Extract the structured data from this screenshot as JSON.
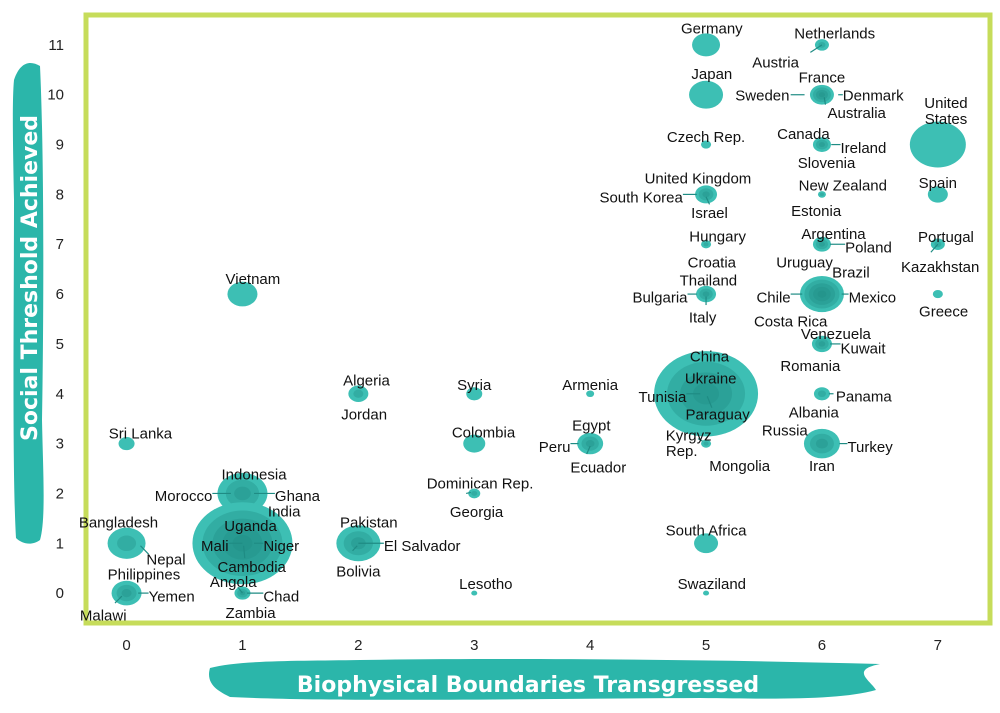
{
  "chart_data": {
    "type": "scatter",
    "xlabel": "Biophysical Boundaries Transgressed",
    "ylabel": "Social Threshold Achieved",
    "xlim": [
      -0.35,
      7.45
    ],
    "ylim": [
      -0.6,
      11.6
    ],
    "xticks": [
      0,
      1,
      2,
      3,
      4,
      5,
      6,
      7
    ],
    "yticks": [
      0,
      1,
      2,
      3,
      4,
      5,
      6,
      7,
      8,
      9,
      10,
      11
    ],
    "grid": false,
    "colors": {
      "bubble": "#3dbfb4",
      "bubble_dark": "#1f8c84",
      "frame": "#c6dc5a",
      "axis_banner": "#2bb6aa"
    },
    "bubbles": [
      {
        "x": 5,
        "y": 11,
        "r": 14,
        "k": 1
      },
      {
        "x": 6,
        "y": 11,
        "r": 7,
        "k": 2
      },
      {
        "x": 5,
        "y": 10,
        "r": 17,
        "k": 1
      },
      {
        "x": 6,
        "y": 10,
        "r": 12,
        "k": 4
      },
      {
        "x": 5,
        "y": 9,
        "r": 5,
        "k": 1
      },
      {
        "x": 6,
        "y": 9,
        "r": 9,
        "k": 3
      },
      {
        "x": 7,
        "y": 9,
        "r": 28,
        "k": 1
      },
      {
        "x": 5,
        "y": 8,
        "r": 11,
        "k": 3
      },
      {
        "x": 6,
        "y": 8,
        "r": 4,
        "k": 2
      },
      {
        "x": 7,
        "y": 8,
        "r": 10,
        "k": 1
      },
      {
        "x": 5,
        "y": 7,
        "r": 5,
        "k": 2
      },
      {
        "x": 6,
        "y": 7,
        "r": 9,
        "k": 3
      },
      {
        "x": 7,
        "y": 7,
        "r": 7,
        "k": 2
      },
      {
        "x": 1,
        "y": 6,
        "r": 15,
        "k": 1
      },
      {
        "x": 5,
        "y": 6,
        "r": 10,
        "k": 3
      },
      {
        "x": 6,
        "y": 6,
        "r": 22,
        "k": 5
      },
      {
        "x": 7,
        "y": 6,
        "r": 5,
        "k": 1
      },
      {
        "x": 6,
        "y": 5,
        "r": 10,
        "k": 3
      },
      {
        "x": 2,
        "y": 4,
        "r": 10,
        "k": 2
      },
      {
        "x": 3,
        "y": 4,
        "r": 8,
        "k": 1
      },
      {
        "x": 4,
        "y": 4,
        "r": 4,
        "k": 1
      },
      {
        "x": 5,
        "y": 4,
        "r": 52,
        "k": 4
      },
      {
        "x": 6,
        "y": 4,
        "r": 8,
        "k": 2
      },
      {
        "x": 0,
        "y": 3,
        "r": 8,
        "k": 1
      },
      {
        "x": 3,
        "y": 3,
        "r": 11,
        "k": 1
      },
      {
        "x": 4,
        "y": 3,
        "r": 13,
        "k": 3
      },
      {
        "x": 5,
        "y": 3,
        "r": 5,
        "k": 2
      },
      {
        "x": 6,
        "y": 3,
        "r": 18,
        "k": 3
      },
      {
        "x": 1,
        "y": 2,
        "r": 25,
        "k": 3
      },
      {
        "x": 3,
        "y": 2,
        "r": 6,
        "k": 2
      },
      {
        "x": 0,
        "y": 1,
        "r": 19,
        "k": 2
      },
      {
        "x": 1,
        "y": 1,
        "r": 50,
        "k": 5
      },
      {
        "x": 2,
        "y": 1,
        "r": 22,
        "k": 3
      },
      {
        "x": 5,
        "y": 1,
        "r": 12,
        "k": 1
      },
      {
        "x": 0,
        "y": 0,
        "r": 15,
        "k": 3
      },
      {
        "x": 1,
        "y": 0,
        "r": 8,
        "k": 3
      },
      {
        "x": 3,
        "y": 0,
        "r": 3,
        "k": 1
      },
      {
        "x": 5,
        "y": 0,
        "r": 3,
        "k": 1
      }
    ],
    "labels": [
      {
        "t": "Germany",
        "x": 5.05,
        "y": 11.33,
        "a": "middle"
      },
      {
        "t": "Netherlands",
        "x": 6.11,
        "y": 11.23,
        "a": "middle"
      },
      {
        "t": "Austria",
        "x": 5.6,
        "y": 10.65,
        "a": "middle"
      },
      {
        "t": "France",
        "x": 6.0,
        "y": 10.35,
        "a": "middle"
      },
      {
        "t": "Japan",
        "x": 5.05,
        "y": 10.42,
        "a": "middle"
      },
      {
        "t": "Sweden",
        "x": 5.72,
        "y": 9.98,
        "a": "end"
      },
      {
        "t": "Denmark",
        "x": 6.18,
        "y": 9.98,
        "a": "start"
      },
      {
        "t": "Australia",
        "x": 6.3,
        "y": 9.63,
        "a": "middle"
      },
      {
        "t": "United",
        "x": 7.07,
        "y": 9.83,
        "a": "middle"
      },
      {
        "t": "States",
        "x": 7.07,
        "y": 9.51,
        "a": "middle"
      },
      {
        "t": "Czech Rep.",
        "x": 5.0,
        "y": 9.15,
        "a": "middle"
      },
      {
        "t": "Canada",
        "x": 5.84,
        "y": 9.21,
        "a": "middle"
      },
      {
        "t": "Ireland",
        "x": 6.16,
        "y": 8.93,
        "a": "start"
      },
      {
        "t": "Slovenia",
        "x": 6.04,
        "y": 8.63,
        "a": "middle"
      },
      {
        "t": "United Kingdom",
        "x": 4.93,
        "y": 8.32,
        "a": "middle"
      },
      {
        "t": "New Zealand",
        "x": 6.18,
        "y": 8.18,
        "a": "middle"
      },
      {
        "t": "Spain",
        "x": 7.0,
        "y": 8.23,
        "a": "middle"
      },
      {
        "t": "South Korea",
        "x": 4.8,
        "y": 7.94,
        "a": "end"
      },
      {
        "t": "Israel",
        "x": 5.03,
        "y": 7.63,
        "a": "middle"
      },
      {
        "t": "Estonia",
        "x": 5.95,
        "y": 7.67,
        "a": "middle"
      },
      {
        "t": "Hungary",
        "x": 5.1,
        "y": 7.16,
        "a": "middle"
      },
      {
        "t": "Argentina",
        "x": 6.1,
        "y": 7.21,
        "a": "middle"
      },
      {
        "t": "Portugal",
        "x": 7.07,
        "y": 7.15,
        "a": "middle"
      },
      {
        "t": "Poland",
        "x": 6.2,
        "y": 6.93,
        "a": "start"
      },
      {
        "t": "Croatia",
        "x": 5.05,
        "y": 6.63,
        "a": "middle"
      },
      {
        "t": "Uruguay",
        "x": 5.85,
        "y": 6.63,
        "a": "middle"
      },
      {
        "t": "Kazakhstan",
        "x": 7.02,
        "y": 6.54,
        "a": "middle"
      },
      {
        "t": "Brazil",
        "x": 6.25,
        "y": 6.43,
        "a": "middle"
      },
      {
        "t": "Vietnam",
        "x": 1.09,
        "y": 6.3,
        "a": "middle"
      },
      {
        "t": "Thailand",
        "x": 5.02,
        "y": 6.27,
        "a": "middle"
      },
      {
        "t": "Bulgaria",
        "x": 4.84,
        "y": 5.93,
        "a": "end"
      },
      {
        "t": "Chile",
        "x": 5.73,
        "y": 5.93,
        "a": "end"
      },
      {
        "t": "Mexico",
        "x": 6.23,
        "y": 5.93,
        "a": "start"
      },
      {
        "t": "Italy",
        "x": 4.97,
        "y": 5.53,
        "a": "middle"
      },
      {
        "t": "Costa Rica",
        "x": 5.73,
        "y": 5.45,
        "a": "middle"
      },
      {
        "t": "Greece",
        "x": 7.05,
        "y": 5.65,
        "a": "middle"
      },
      {
        "t": "Venezuela",
        "x": 6.12,
        "y": 5.2,
        "a": "middle"
      },
      {
        "t": "Kuwait",
        "x": 6.16,
        "y": 4.91,
        "a": "start"
      },
      {
        "t": "China",
        "x": 5.03,
        "y": 4.75,
        "a": "middle"
      },
      {
        "t": "Romania",
        "x": 5.9,
        "y": 4.56,
        "a": "middle"
      },
      {
        "t": "Ukraine",
        "x": 5.04,
        "y": 4.31,
        "a": "middle"
      },
      {
        "t": "Algeria",
        "x": 2.07,
        "y": 4.27,
        "a": "middle"
      },
      {
        "t": "Syria",
        "x": 3.0,
        "y": 4.18,
        "a": "middle"
      },
      {
        "t": "Armenia",
        "x": 4.0,
        "y": 4.18,
        "a": "middle"
      },
      {
        "t": "Tunisia",
        "x": 4.83,
        "y": 3.93,
        "a": "end"
      },
      {
        "t": "Panama",
        "x": 6.12,
        "y": 3.94,
        "a": "start"
      },
      {
        "t": "Paraguay",
        "x": 5.1,
        "y": 3.58,
        "a": "middle"
      },
      {
        "t": "Albania",
        "x": 5.93,
        "y": 3.62,
        "a": "middle"
      },
      {
        "t": "Jordan",
        "x": 2.05,
        "y": 3.58,
        "a": "middle"
      },
      {
        "t": "Egypt",
        "x": 4.01,
        "y": 3.36,
        "a": "middle"
      },
      {
        "t": "Kyrgyz",
        "x": 4.85,
        "y": 3.16,
        "a": "middle"
      },
      {
        "t": "Russia",
        "x": 5.68,
        "y": 3.26,
        "a": "middle"
      },
      {
        "t": "Sri Lanka",
        "x": 0.12,
        "y": 3.2,
        "a": "middle"
      },
      {
        "t": "Colombia",
        "x": 3.08,
        "y": 3.22,
        "a": "middle"
      },
      {
        "t": "Peru",
        "x": 3.83,
        "y": 2.93,
        "a": "end"
      },
      {
        "t": "Turkey",
        "x": 6.22,
        "y": 2.93,
        "a": "start"
      },
      {
        "t": "Rep.",
        "x": 4.79,
        "y": 2.85,
        "a": "middle"
      },
      {
        "t": "Mongolia",
        "x": 5.29,
        "y": 2.55,
        "a": "middle"
      },
      {
        "t": "Iran",
        "x": 6.0,
        "y": 2.55,
        "a": "middle"
      },
      {
        "t": "Ecuador",
        "x": 4.07,
        "y": 2.52,
        "a": "middle"
      },
      {
        "t": "Indonesia",
        "x": 1.1,
        "y": 2.38,
        "a": "middle"
      },
      {
        "t": "Dominican Rep.",
        "x": 3.05,
        "y": 2.2,
        "a": "middle"
      },
      {
        "t": "Morocco",
        "x": 0.74,
        "y": 1.95,
        "a": "end"
      },
      {
        "t": "Ghana",
        "x": 1.28,
        "y": 1.95,
        "a": "start"
      },
      {
        "t": "India",
        "x": 1.36,
        "y": 1.64,
        "a": "middle"
      },
      {
        "t": "Georgia",
        "x": 3.02,
        "y": 1.63,
        "a": "middle"
      },
      {
        "t": "Bangladesh",
        "x": -0.07,
        "y": 1.42,
        "a": "middle"
      },
      {
        "t": "Pakistan",
        "x": 2.09,
        "y": 1.42,
        "a": "middle"
      },
      {
        "t": "Uganda",
        "x": 1.07,
        "y": 1.35,
        "a": "middle"
      },
      {
        "t": "South Africa",
        "x": 5.0,
        "y": 1.26,
        "a": "middle"
      },
      {
        "t": "Mali",
        "x": 0.88,
        "y": 0.95,
        "a": "end"
      },
      {
        "t": "Niger",
        "x": 1.18,
        "y": 0.95,
        "a": "start"
      },
      {
        "t": "El Salvador",
        "x": 2.22,
        "y": 0.95,
        "a": "start"
      },
      {
        "t": "Nepal",
        "x": 0.34,
        "y": 0.67,
        "a": "middle"
      },
      {
        "t": "Cambodia",
        "x": 1.08,
        "y": 0.52,
        "a": "middle"
      },
      {
        "t": "Bolivia",
        "x": 2.0,
        "y": 0.43,
        "a": "middle"
      },
      {
        "t": "Philippines",
        "x": 0.15,
        "y": 0.37,
        "a": "middle"
      },
      {
        "t": "Angola",
        "x": 0.92,
        "y": 0.22,
        "a": "middle"
      },
      {
        "t": "Lesotho",
        "x": 3.1,
        "y": 0.18,
        "a": "middle"
      },
      {
        "t": "Swaziland",
        "x": 5.05,
        "y": 0.18,
        "a": "middle"
      },
      {
        "t": "Yemen",
        "x": 0.19,
        "y": -0.07,
        "a": "start"
      },
      {
        "t": "Chad",
        "x": 1.18,
        "y": -0.07,
        "a": "start"
      },
      {
        "t": "Malawi",
        "x": 0.0,
        "y": -0.45,
        "a": "end"
      },
      {
        "t": "Zambia",
        "x": 1.07,
        "y": -0.4,
        "a": "middle"
      }
    ],
    "leaders": [
      [
        5.85,
        10.0,
        5.73,
        10.0
      ],
      [
        6.14,
        10.0,
        6.18,
        10.0
      ],
      [
        6.02,
        9.95,
        6.03,
        9.8
      ],
      [
        6.0,
        11.0,
        5.9,
        10.85
      ],
      [
        6.08,
        9.0,
        6.16,
        9.0
      ],
      [
        4.92,
        8.0,
        4.8,
        8.0
      ],
      [
        5.0,
        7.95,
        5.03,
        7.8
      ],
      [
        6.07,
        7.0,
        6.2,
        7.0
      ],
      [
        7.0,
        7.0,
        6.94,
        6.84
      ],
      [
        4.92,
        6.0,
        4.84,
        6.0
      ],
      [
        5.83,
        6.0,
        5.73,
        6.0
      ],
      [
        6.17,
        6.0,
        6.23,
        6.0
      ],
      [
        5.0,
        5.95,
        5.0,
        5.78
      ],
      [
        6.07,
        5.0,
        6.16,
        5.0
      ],
      [
        6.06,
        4.0,
        6.1,
        4.0
      ],
      [
        4.95,
        4.0,
        4.83,
        4.0
      ],
      [
        5.01,
        3.95,
        5.05,
        3.72
      ],
      [
        3.9,
        3.0,
        3.83,
        3.0
      ],
      [
        4.0,
        2.95,
        3.97,
        2.79
      ],
      [
        4.97,
        3.05,
        4.93,
        3.1
      ],
      [
        6.15,
        3.0,
        6.22,
        3.0
      ],
      [
        0.9,
        2.0,
        0.74,
        2.0
      ],
      [
        1.1,
        2.0,
        1.28,
        2.0
      ],
      [
        2.93,
        2.0,
        2.97,
        2.02
      ],
      [
        1.0,
        1.0,
        0.88,
        1.0
      ],
      [
        1.1,
        1.0,
        1.18,
        1.0
      ],
      [
        2.0,
        1.0,
        2.22,
        1.0
      ],
      [
        0.12,
        0.95,
        0.19,
        0.78
      ],
      [
        1.01,
        0.95,
        1.02,
        0.7
      ],
      [
        1.99,
        0.95,
        1.95,
        0.85
      ],
      [
        0.1,
        0.0,
        0.19,
        0.0
      ],
      [
        1.04,
        0.0,
        1.18,
        0.0
      ],
      [
        1.0,
        0.0,
        0.96,
        0.12
      ],
      [
        -0.04,
        -0.06,
        -0.1,
        -0.2
      ]
    ]
  }
}
